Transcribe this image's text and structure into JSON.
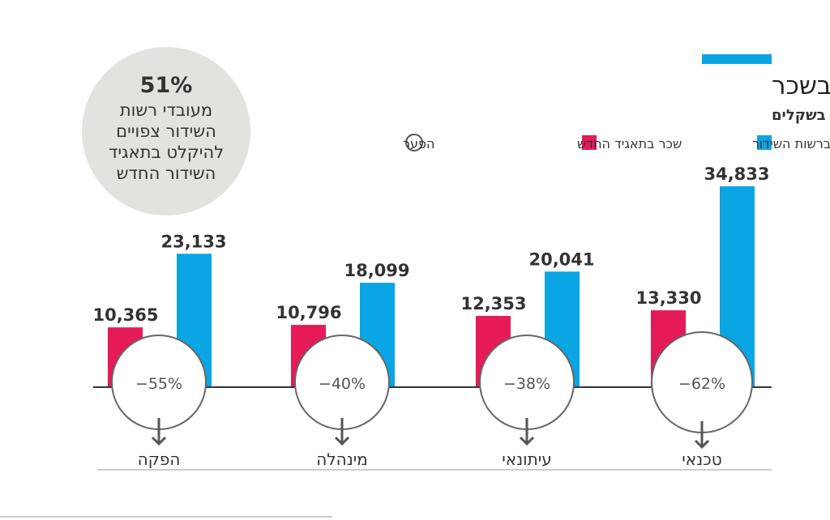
{
  "chart_data": {
    "type": "bar",
    "title": "תאגיד השידור החדש מתכנן לחתוך בשכר",
    "subtitle": "שכר ממוצע משוער בתפקידים שונים, ברוטו לחודש בשקלים",
    "legend": [
      {
        "label": "שכר ברשות השידור",
        "color": "#0aa5e3"
      },
      {
        "label": "שכר בתאגיד החדש",
        "color": "#e51a57"
      },
      {
        "label": "הפער",
        "shape": "circle"
      }
    ],
    "legend_placement": "top-right",
    "categories": [
      "טכנאי",
      "עיתונאי",
      "מינהלה",
      "הפקה"
    ],
    "series": [
      {
        "name": "שכר ברשות השידור",
        "values": [
          34833,
          20041,
          18099,
          23133
        ],
        "labels": [
          "34,833",
          "20,041",
          "18,099",
          "23,133"
        ]
      },
      {
        "name": "שכר בתאגיד החדש",
        "values": [
          13330,
          12353,
          10796,
          10365
        ],
        "labels": [
          "13,330",
          "12,353",
          "10,796",
          "10,365"
        ]
      }
    ],
    "gaps": [
      "−62%",
      "−38%",
      "−40%",
      "−55%"
    ],
    "ylim": [
      0,
      36000
    ],
    "grid": false,
    "callout": {
      "value": "51%",
      "lines": [
        "מעובדי רשות",
        "השידור צפויים",
        "להיקלט בתאגיד",
        "השידור החדש"
      ]
    }
  }
}
